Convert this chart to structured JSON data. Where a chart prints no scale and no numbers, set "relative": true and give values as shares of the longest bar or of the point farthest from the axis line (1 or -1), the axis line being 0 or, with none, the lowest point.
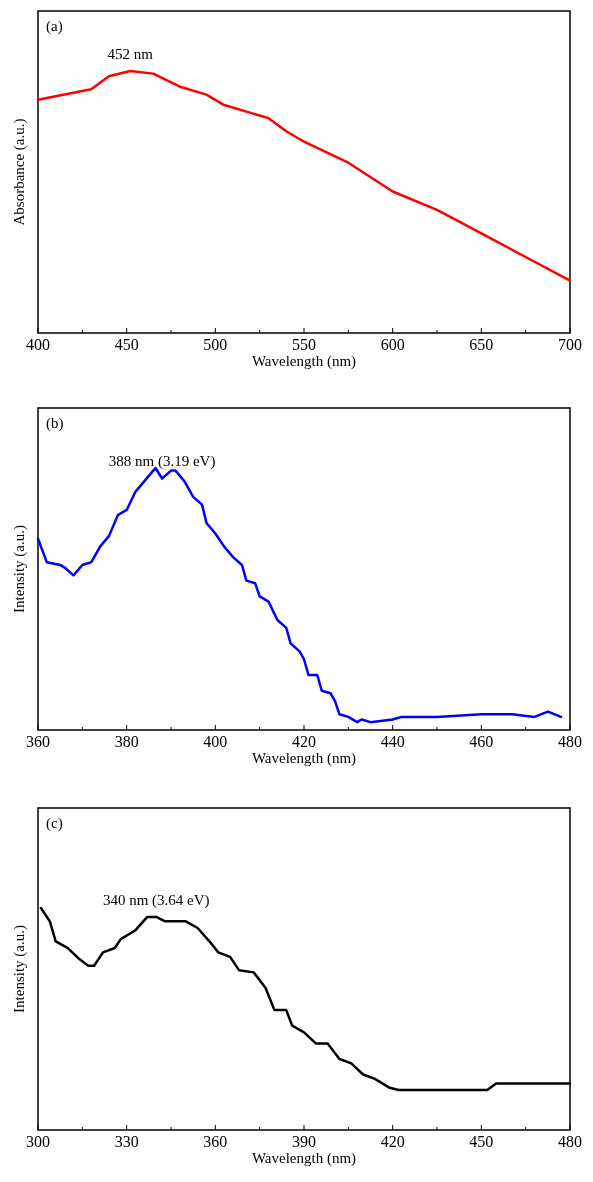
{
  "chart_data": [
    {
      "type": "line",
      "xlabel": "Wavelength (nm)",
      "ylabel": "Absorbance (a.u.)",
      "relative": true,
      "xlim": [
        400,
        700
      ],
      "xticks": [
        400,
        {
          "value": 425,
          "label": null
        },
        450,
        {
          "value": 475,
          "label": null
        },
        500,
        {
          "value": 525,
          "label": null
        },
        550,
        {
          "value": 575,
          "label": null
        },
        600,
        {
          "value": 625,
          "label": null
        },
        650,
        {
          "value": 675,
          "label": null
        },
        700
      ],
      "x": [
        400,
        430,
        440,
        452,
        465,
        480,
        495,
        500,
        505,
        520,
        530,
        540,
        550,
        575,
        600,
        625,
        650,
        675,
        700
      ],
      "series": [
        {
          "color": "#ff0000",
          "values": [
            0.89,
            0.93,
            0.98,
            1.0,
            0.99,
            0.94,
            0.91,
            0.89,
            0.87,
            0.84,
            0.82,
            0.77,
            0.73,
            0.65,
            0.54,
            0.47,
            0.38,
            0.29,
            0.2
          ]
        }
      ],
      "annotations": [
        "(a)",
        {
          "text": "452 nm",
          "x": 452,
          "y": 1.0
        }
      ]
    },
    {
      "type": "line",
      "xlabel": "Wavelength (nm)",
      "ylabel": "Intensity (a.u.)",
      "relative": true,
      "xlim": [
        360,
        480
      ],
      "xticks": [
        360,
        {
          "value": 370,
          "label": null
        },
        380,
        {
          "value": 390,
          "label": null
        },
        400,
        {
          "value": 410,
          "label": null
        },
        420,
        {
          "value": 430,
          "label": null
        },
        440,
        {
          "value": 450,
          "label": null
        },
        460,
        {
          "value": 470,
          "label": null
        },
        480
      ],
      "x": [
        360,
        362,
        365,
        366,
        368,
        370,
        372,
        374,
        376,
        378,
        380,
        382,
        384,
        386,
        386.5,
        388,
        390,
        391,
        393,
        395,
        397,
        398,
        400,
        402,
        404,
        406,
        407,
        409,
        410,
        412,
        414,
        416,
        417,
        419,
        420,
        421,
        423,
        424,
        426,
        427,
        428,
        430,
        432,
        433,
        435,
        440,
        442,
        450,
        460,
        465,
        467,
        472,
        475,
        478
      ],
      "series": [
        {
          "color": "#0000ff",
          "values": [
            0.73,
            0.64,
            0.63,
            0.62,
            0.59,
            0.63,
            0.64,
            0.7,
            0.74,
            0.82,
            0.84,
            0.91,
            0.95,
            0.99,
            1.0,
            0.96,
            0.99,
            0.99,
            0.95,
            0.89,
            0.86,
            0.79,
            0.75,
            0.7,
            0.66,
            0.63,
            0.57,
            0.56,
            0.51,
            0.49,
            0.42,
            0.39,
            0.33,
            0.3,
            0.27,
            0.21,
            0.21,
            0.15,
            0.14,
            0.11,
            0.06,
            0.05,
            0.03,
            0.04,
            0.03,
            0.04,
            0.05,
            0.05,
            0.06,
            0.06,
            0.06,
            0.05,
            0.07,
            0.05
          ]
        }
      ],
      "annotations": [
        "(b)",
        {
          "text": "388 nm (3.19 eV)",
          "x": 388,
          "y": 0.96
        }
      ]
    },
    {
      "type": "line",
      "xlabel": "Wavelength (nm)",
      "ylabel": "Intensity (a.u.)",
      "relative": true,
      "xlim": [
        300,
        480
      ],
      "xticks": [
        300,
        {
          "value": 315,
          "label": null
        },
        330,
        {
          "value": 345,
          "label": null
        },
        360,
        {
          "value": 375,
          "label": null
        },
        390,
        {
          "value": 405,
          "label": null
        },
        420,
        {
          "value": 435,
          "label": null
        },
        450,
        {
          "value": 465,
          "label": null
        },
        480
      ],
      "x": [
        301,
        304,
        306,
        310,
        314,
        317,
        319,
        322,
        326,
        328,
        333,
        337,
        340,
        343,
        350,
        354,
        358,
        361,
        365,
        368,
        373,
        377,
        380,
        384,
        386,
        390,
        394,
        398,
        402,
        406,
        410,
        414,
        419,
        422,
        452,
        455,
        480
      ],
      "series": [
        {
          "color": "#000000",
          "values": [
            1.0,
            0.94,
            0.85,
            0.82,
            0.77,
            0.74,
            0.74,
            0.8,
            0.82,
            0.86,
            0.9,
            0.96,
            0.96,
            0.94,
            0.94,
            0.91,
            0.85,
            0.8,
            0.78,
            0.72,
            0.71,
            0.64,
            0.54,
            0.54,
            0.47,
            0.44,
            0.39,
            0.39,
            0.32,
            0.3,
            0.25,
            0.23,
            0.19,
            0.18,
            0.18,
            0.21,
            0.21
          ]
        }
      ],
      "annotations": [
        "(c)",
        {
          "text": "340 nm (3.64 eV)",
          "x": 340,
          "y": 0.96
        }
      ]
    }
  ]
}
